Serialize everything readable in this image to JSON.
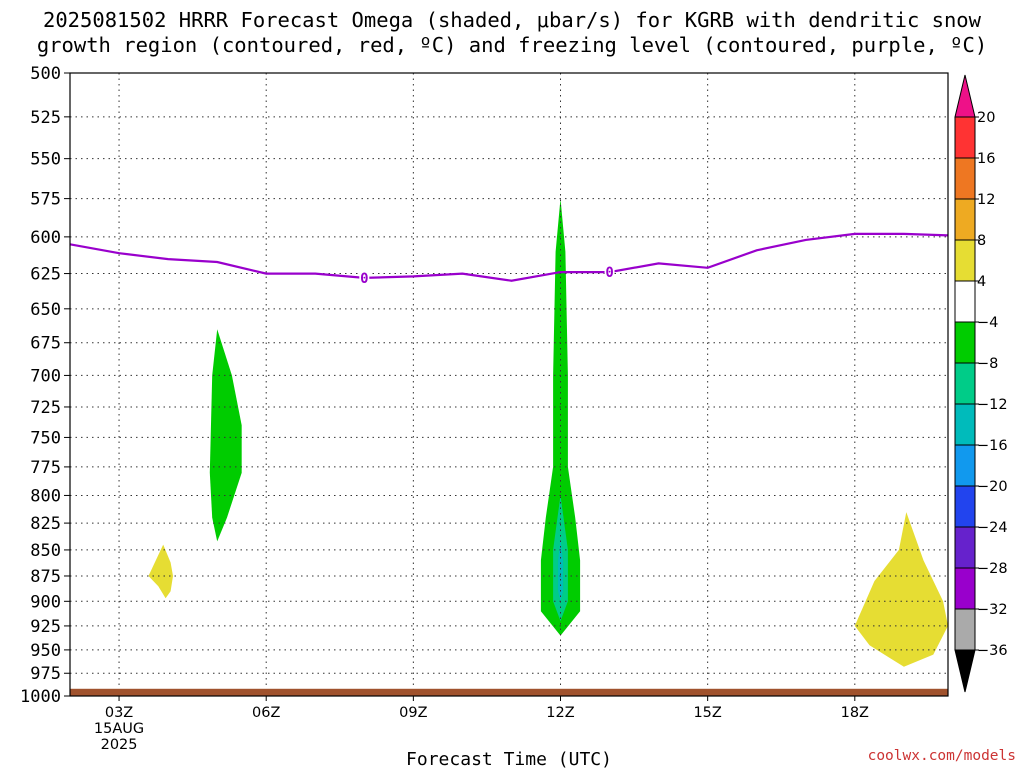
{
  "title": {
    "line1": "2025081502 HRRR Forecast Omega (shaded, μbar/s) for KGRB with dendritic snow",
    "line2": "growth region (contoured, red, ºC) and freezing level (contoured, purple, ºC)"
  },
  "credit": "coolwx.com/models",
  "chart_data": {
    "type": "area",
    "xlabel": "Forecast Time (UTC)",
    "ylabel": "",
    "x_units": "forecast hour (UTC), run 2025-08-15 02Z",
    "xlim": [
      2,
      19.9
    ],
    "ylim": [
      1000,
      500
    ],
    "y_scale": "log-pressure (inverted)",
    "grid": true,
    "x_ticks": [
      {
        "hour": 3,
        "label": "03Z",
        "sub": [
          "15AUG",
          "2025"
        ]
      },
      {
        "hour": 6,
        "label": "06Z"
      },
      {
        "hour": 9,
        "label": "09Z"
      },
      {
        "hour": 12,
        "label": "12Z"
      },
      {
        "hour": 15,
        "label": "15Z"
      },
      {
        "hour": 18,
        "label": "18Z"
      }
    ],
    "y_ticks": [
      500,
      525,
      550,
      575,
      600,
      625,
      650,
      675,
      700,
      725,
      750,
      775,
      800,
      825,
      850,
      875,
      900,
      925,
      950,
      975,
      1000
    ],
    "freezing_level": {
      "name": "freezing level",
      "color": "#9900cc",
      "label": "0",
      "label_hours": [
        8,
        13
      ],
      "points": [
        [
          2,
          605
        ],
        [
          3,
          611
        ],
        [
          4,
          615
        ],
        [
          5,
          617
        ],
        [
          6,
          625
        ],
        [
          7,
          625
        ],
        [
          8,
          628
        ],
        [
          9,
          627
        ],
        [
          10,
          625
        ],
        [
          11,
          630
        ],
        [
          12,
          624
        ],
        [
          13,
          624
        ],
        [
          14,
          618
        ],
        [
          15,
          621
        ],
        [
          16,
          609
        ],
        [
          17,
          602
        ],
        [
          18,
          598
        ],
        [
          19,
          598
        ],
        [
          19.9,
          599
        ]
      ]
    },
    "ground": {
      "color": "#a0522d",
      "pressure": 992
    },
    "omega_regions": [
      {
        "bin": "-8 to -4",
        "color": "#00cc00",
        "polygon": [
          [
            5.0,
            665
          ],
          [
            5.3,
            700
          ],
          [
            5.5,
            740
          ],
          [
            5.5,
            780
          ],
          [
            5.2,
            820
          ],
          [
            5.0,
            842
          ],
          [
            4.9,
            820
          ],
          [
            4.85,
            780
          ],
          [
            4.9,
            700
          ]
        ]
      },
      {
        "bin": "-8 to -4",
        "color": "#00cc00",
        "polygon": [
          [
            12.0,
            575
          ],
          [
            12.1,
            610
          ],
          [
            12.15,
            700
          ],
          [
            12.15,
            775
          ],
          [
            12.3,
            820
          ],
          [
            12.4,
            860
          ],
          [
            12.4,
            910
          ],
          [
            12.0,
            935
          ],
          [
            11.6,
            910
          ],
          [
            11.6,
            860
          ],
          [
            11.7,
            820
          ],
          [
            11.85,
            775
          ],
          [
            11.85,
            700
          ],
          [
            11.9,
            610
          ]
        ]
      },
      {
        "bin": "-12 to -8",
        "color": "#00cc88",
        "polygon": [
          [
            12.0,
            800
          ],
          [
            12.15,
            850
          ],
          [
            12.15,
            900
          ],
          [
            12.0,
            920
          ],
          [
            11.85,
            900
          ],
          [
            11.85,
            850
          ]
        ]
      },
      {
        "bin": "-16 to -12",
        "color": "#00bbbb",
        "polygon": [
          [
            12.0,
            840
          ],
          [
            12.05,
            860
          ],
          [
            12.05,
            890
          ],
          [
            12.0,
            900
          ],
          [
            11.95,
            890
          ],
          [
            11.95,
            860
          ]
        ]
      },
      {
        "bin": "4 to 8",
        "color": "#e6dd33",
        "polygon": [
          [
            3.9,
            845
          ],
          [
            4.05,
            862
          ],
          [
            4.1,
            875
          ],
          [
            4.05,
            890
          ],
          [
            3.95,
            897
          ],
          [
            3.8,
            885
          ],
          [
            3.6,
            875
          ],
          [
            3.75,
            860
          ]
        ]
      },
      {
        "bin": "4 to 8",
        "color": "#e6dd33",
        "polygon": [
          [
            19.05,
            815
          ],
          [
            19.4,
            860
          ],
          [
            19.8,
            900
          ],
          [
            19.9,
            925
          ],
          [
            19.6,
            955
          ],
          [
            19.0,
            968
          ],
          [
            18.3,
            945
          ],
          [
            18.0,
            925
          ],
          [
            18.4,
            880
          ],
          [
            18.9,
            850
          ]
        ]
      }
    ],
    "colorbar": {
      "labels": [
        "20",
        "16",
        "12",
        "8",
        "4",
        "−4",
        "−8",
        "−12",
        "−16",
        "−20",
        "−24",
        "−28",
        "−32",
        "−36"
      ],
      "bins": [
        {
          "color": "#ff3333"
        },
        {
          "color": "#ee7722"
        },
        {
          "color": "#eeaa22"
        },
        {
          "color": "#e6dd33"
        },
        {
          "color": "#ffffff"
        },
        {
          "color": "#00cc00"
        },
        {
          "color": "#00cc88"
        },
        {
          "color": "#00bbbb"
        },
        {
          "color": "#1199ee"
        },
        {
          "color": "#2244ee"
        },
        {
          "color": "#6622cc"
        },
        {
          "color": "#9900cc"
        },
        {
          "color": "#aaaaaa"
        }
      ],
      "top_arrow_color": "#ee1188",
      "bottom_arrow_color": "#000000"
    }
  }
}
